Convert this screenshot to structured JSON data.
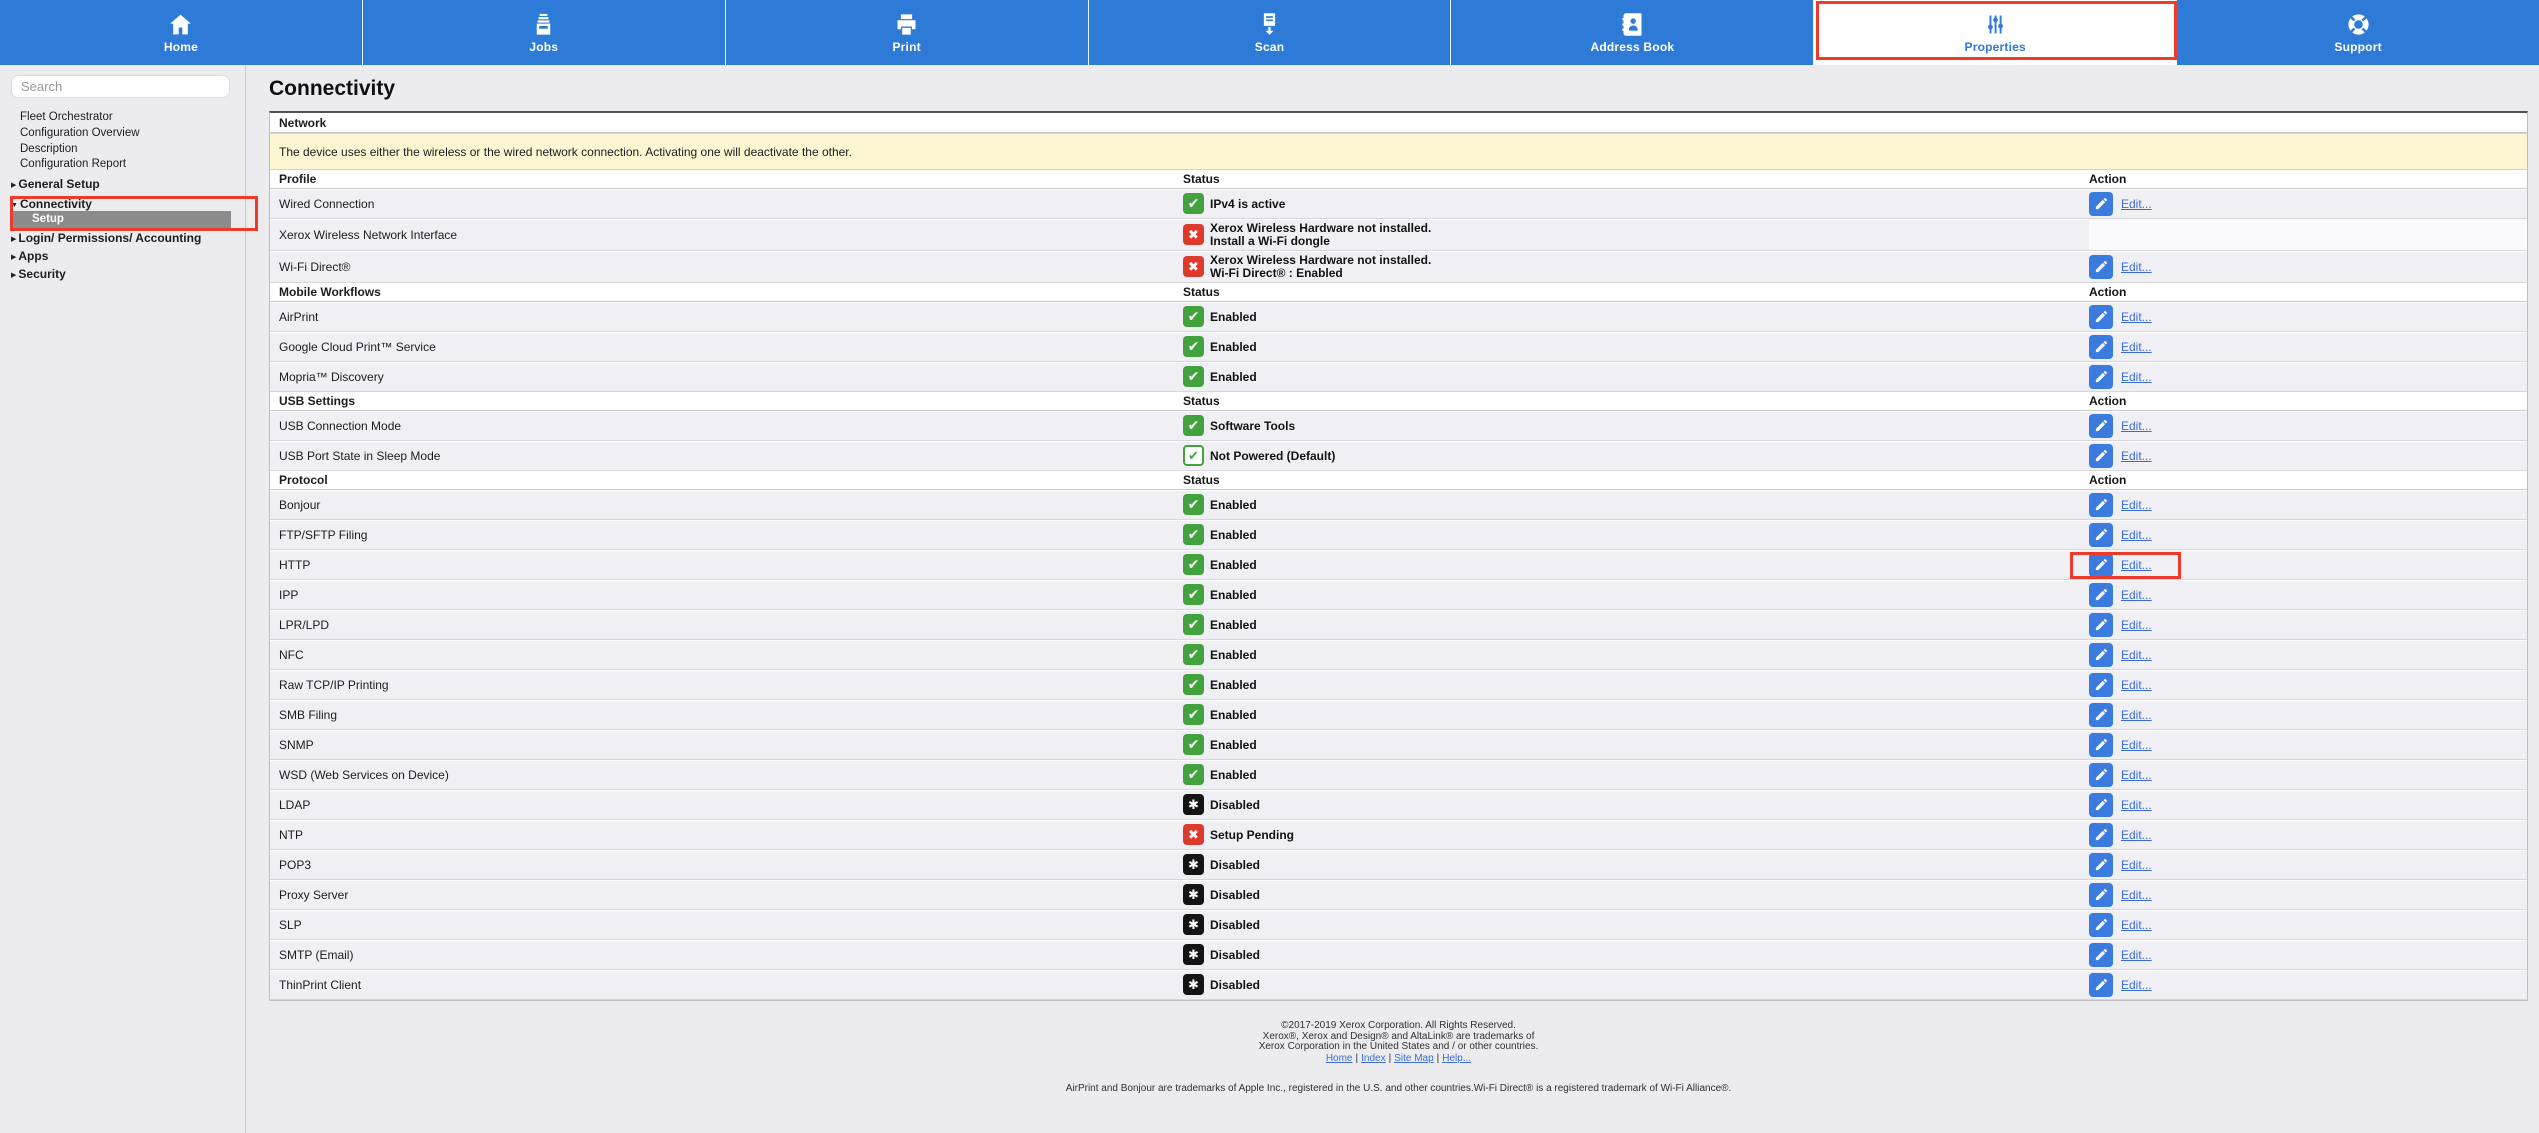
{
  "nav": {
    "tabs": [
      {
        "label": "Home",
        "icon": "home-icon"
      },
      {
        "label": "Jobs",
        "icon": "jobs-icon"
      },
      {
        "label": "Print",
        "icon": "print-icon"
      },
      {
        "label": "Scan",
        "icon": "scan-icon"
      },
      {
        "label": "Address Book",
        "icon": "address-book-icon"
      },
      {
        "label": "Properties",
        "icon": "properties-icon",
        "active": true,
        "annotated": true
      },
      {
        "label": "Support",
        "icon": "support-icon"
      }
    ]
  },
  "sidebar": {
    "search_placeholder": "Search",
    "items": [
      {
        "label": "Fleet Orchestrator",
        "type": "link"
      },
      {
        "label": "Configuration Overview",
        "type": "link"
      },
      {
        "label": "Description",
        "type": "link"
      },
      {
        "label": "Configuration Report",
        "type": "link"
      },
      {
        "label": "General Setup",
        "type": "branch",
        "state": "collapsed"
      },
      {
        "label": "Connectivity",
        "type": "branch",
        "state": "expanded",
        "annotated": true
      },
      {
        "label": "Setup",
        "type": "child",
        "selected": true
      },
      {
        "label": "Login/ Permissions/ Accounting",
        "type": "branch",
        "state": "collapsed"
      },
      {
        "label": "Apps",
        "type": "branch",
        "state": "collapsed"
      },
      {
        "label": "Security",
        "type": "branch",
        "state": "collapsed"
      }
    ]
  },
  "main": {
    "title": "Connectivity",
    "edit_label": "Edit...",
    "sections": [
      {
        "header": {
          "label": "Network"
        },
        "notice": "The device uses either the wireless or the wired network connection. Activating one will deactivate the other.",
        "subheader": {
          "profile": "Profile",
          "status": "Status",
          "action": "Action"
        },
        "rows": [
          {
            "label": "Wired Connection",
            "icon": "check-green",
            "status": "IPv4 is active",
            "edit": true
          },
          {
            "label": "Xerox Wireless Network Interface",
            "icon": "x-red",
            "status_lines": [
              "Xerox Wireless Hardware not installed.",
              "Install a Wi-Fi dongle"
            ],
            "edit": false
          },
          {
            "label": "Wi-Fi Direct®",
            "icon": "x-red",
            "status_lines": [
              "Xerox Wireless Hardware not installed.",
              "Wi-Fi Direct® : Enabled"
            ],
            "edit": true
          }
        ]
      },
      {
        "header": {
          "label": "Mobile Workflows",
          "status": "Status",
          "action": "Action"
        },
        "rows": [
          {
            "label": "AirPrint",
            "icon": "check-green",
            "status": "Enabled",
            "edit": true
          },
          {
            "label": "Google Cloud Print™ Service",
            "icon": "check-green",
            "status": "Enabled",
            "edit": true
          },
          {
            "label": "Mopria™ Discovery",
            "icon": "check-green",
            "status": "Enabled",
            "edit": true
          }
        ]
      },
      {
        "header": {
          "label": "USB Settings",
          "status": "Status",
          "action": "Action"
        },
        "rows": [
          {
            "label": "USB Connection Mode",
            "icon": "check-green",
            "status": "Software Tools",
            "edit": true
          },
          {
            "label": "USB Port State in Sleep Mode",
            "icon": "check-outline",
            "status": "Not Powered (Default)",
            "edit": true
          }
        ]
      },
      {
        "header": {
          "label": "Protocol",
          "status": "Status",
          "action": "Action"
        },
        "rows": [
          {
            "label": "Bonjour",
            "icon": "check-green",
            "status": "Enabled",
            "edit": true
          },
          {
            "label": "FTP/SFTP Filing",
            "icon": "check-green",
            "status": "Enabled",
            "edit": true
          },
          {
            "label": "HTTP",
            "icon": "check-green",
            "status": "Enabled",
            "edit": true,
            "annotated": true
          },
          {
            "label": "IPP",
            "icon": "check-green",
            "status": "Enabled",
            "edit": true
          },
          {
            "label": "LPR/LPD",
            "icon": "check-green",
            "status": "Enabled",
            "edit": true
          },
          {
            "label": "NFC",
            "icon": "check-green",
            "status": "Enabled",
            "edit": true
          },
          {
            "label": "Raw TCP/IP Printing",
            "icon": "check-green",
            "status": "Enabled",
            "edit": true
          },
          {
            "label": "SMB Filing",
            "icon": "check-green",
            "status": "Enabled",
            "edit": true
          },
          {
            "label": "SNMP",
            "icon": "check-green",
            "status": "Enabled",
            "edit": true
          },
          {
            "label": "WSD (Web Services on Device)",
            "icon": "check-green",
            "status": "Enabled",
            "edit": true
          },
          {
            "label": "LDAP",
            "icon": "asterisk-black",
            "status": "Disabled",
            "edit": true
          },
          {
            "label": "NTP",
            "icon": "x-red",
            "status": "Setup Pending",
            "edit": true
          },
          {
            "label": "POP3",
            "icon": "asterisk-black",
            "status": "Disabled",
            "edit": true
          },
          {
            "label": "Proxy Server",
            "icon": "asterisk-black",
            "status": "Disabled",
            "edit": true
          },
          {
            "label": "SLP",
            "icon": "asterisk-black",
            "status": "Disabled",
            "edit": true
          },
          {
            "label": "SMTP (Email)",
            "icon": "asterisk-black",
            "status": "Disabled",
            "edit": true
          },
          {
            "label": "ThinPrint Client",
            "icon": "asterisk-black",
            "status": "Disabled",
            "edit": true
          }
        ]
      }
    ]
  },
  "status_glyphs": {
    "check-green": "✔",
    "check-outline": "✔",
    "x-red": "✖",
    "asterisk-black": "✱"
  },
  "footer": {
    "copyright_lines": [
      "©2017-2019  Xerox Corporation. All Rights Reserved.",
      "Xerox®, Xerox and Design® and AltaLink® are trademarks of",
      "Xerox Corporation in the United States and / or other countries."
    ],
    "links": [
      "Home",
      "Index",
      "Site Map",
      "Help..."
    ],
    "trademark_line": "AirPrint and Bonjour are trademarks of Apple Inc., registered in the U.S. and other countries.Wi-Fi Direct® is a registered trademark of Wi-Fi Alliance®."
  },
  "colors": {
    "nav_blue": "#2e7ad7",
    "annotation_red": "#ee392b",
    "status_green": "#42a23e",
    "status_red": "#dd3a2e",
    "status_black": "#141414",
    "link_blue": "#3b6bd6",
    "notice_yellow": "#fcf6d2"
  }
}
